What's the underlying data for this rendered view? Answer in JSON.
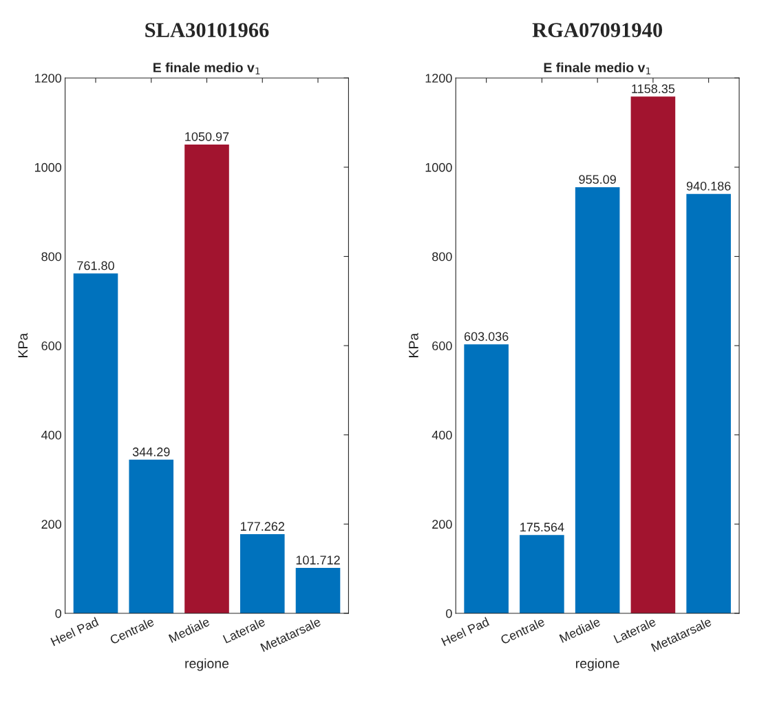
{
  "chart_data": [
    {
      "type": "bar",
      "title": "SLA30101966",
      "subtitle": "E finale medio v$_{1}$",
      "xlabel": "regione",
      "ylabel": "KPa",
      "categories": [
        "Heel Pad",
        "Centrale",
        "Mediale",
        "Laterale",
        "Metatarsale"
      ],
      "values": [
        761.8,
        344.29,
        1050.97,
        177.262,
        101.712
      ],
      "value_labels": [
        "761.80",
        "344.29",
        "1050.97",
        "177.262",
        "101.712"
      ],
      "colors": [
        "#0072bd",
        "#0072bd",
        "#a2142f",
        "#0072bd",
        "#0072bd"
      ],
      "ylim": [
        0,
        1200
      ],
      "yticks": [
        0,
        200,
        400,
        600,
        800,
        1000,
        1200
      ],
      "grid": false
    },
    {
      "type": "bar",
      "title": "RGA07091940",
      "subtitle": "E finale medio v$_{1}$",
      "xlabel": "regione",
      "ylabel": "KPa",
      "categories": [
        "Heel Pad",
        "Centrale",
        "Mediale",
        "Laterale",
        "Metatarsale"
      ],
      "values": [
        603.036,
        175.564,
        955.09,
        1158.35,
        940.186
      ],
      "value_labels": [
        "603.036",
        "175.564",
        "955.09",
        "1158.35",
        "940.186"
      ],
      "colors": [
        "#0072bd",
        "#0072bd",
        "#0072bd",
        "#a2142f",
        "#0072bd"
      ],
      "ylim": [
        0,
        1200
      ],
      "yticks": [
        0,
        200,
        400,
        600,
        800,
        1000,
        1200
      ],
      "grid": false
    }
  ]
}
